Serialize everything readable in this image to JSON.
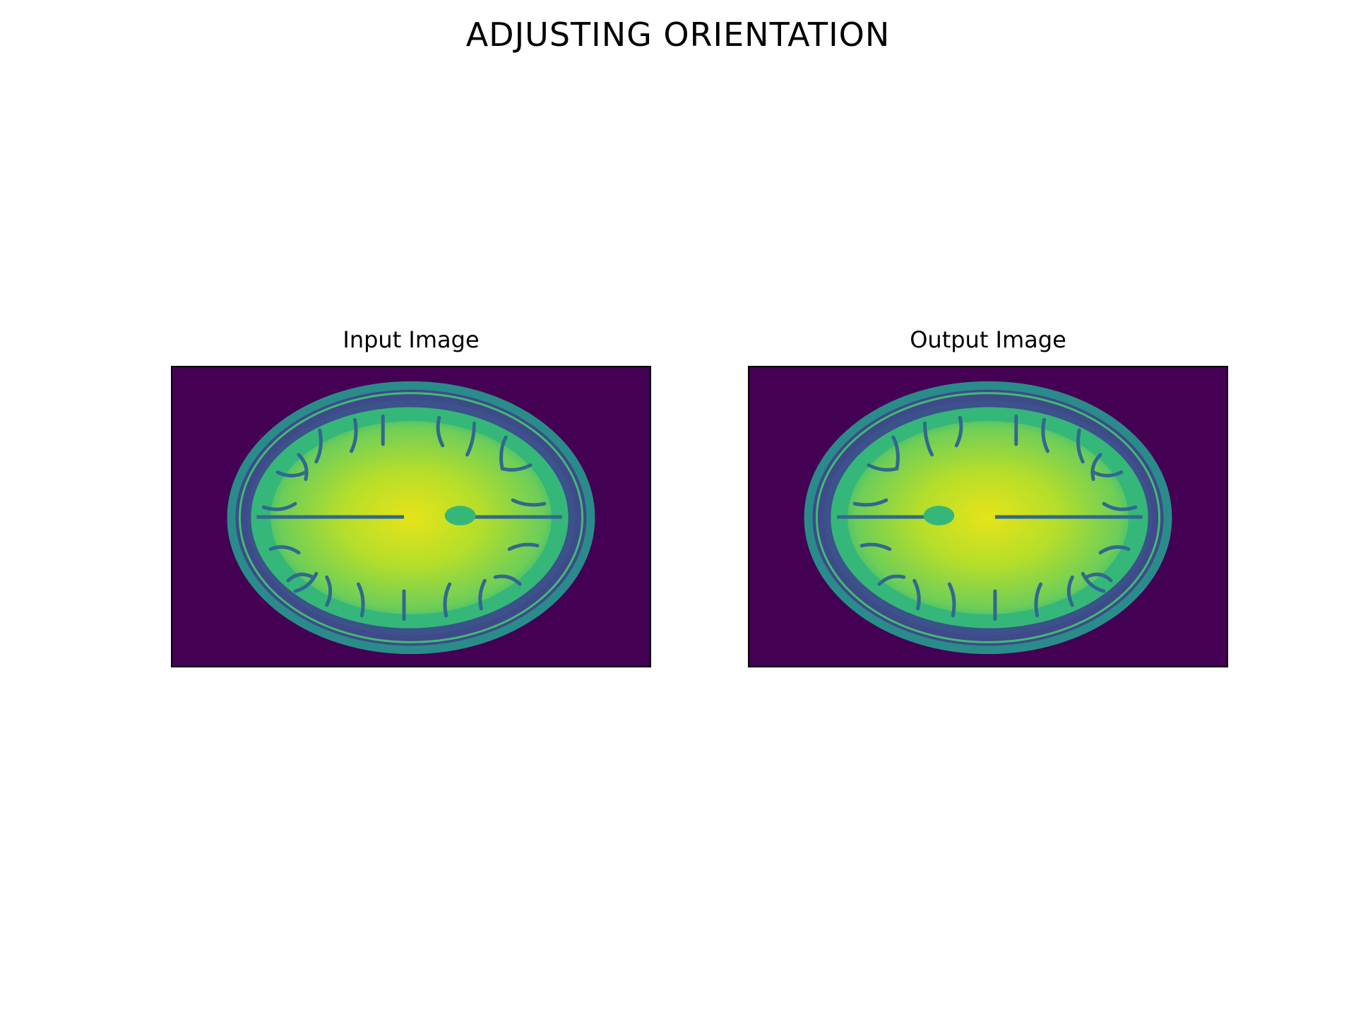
{
  "figure": {
    "suptitle": "ADJUSTING ORIENTATION",
    "panels": [
      {
        "title": "Input Image",
        "content": "axial brain MRI slice",
        "colormap": "viridis"
      },
      {
        "title": "Output Image",
        "content": "axial brain MRI slice",
        "colormap": "viridis"
      }
    ]
  },
  "colors": {
    "background": "#440154",
    "skull_ring": "#2a8c8a",
    "skull_edge": "#3fbc73",
    "gray_matter": "#35b779",
    "white_matter": "#b5de2b",
    "bright": "#e6e419",
    "sulci": "#31688e"
  }
}
